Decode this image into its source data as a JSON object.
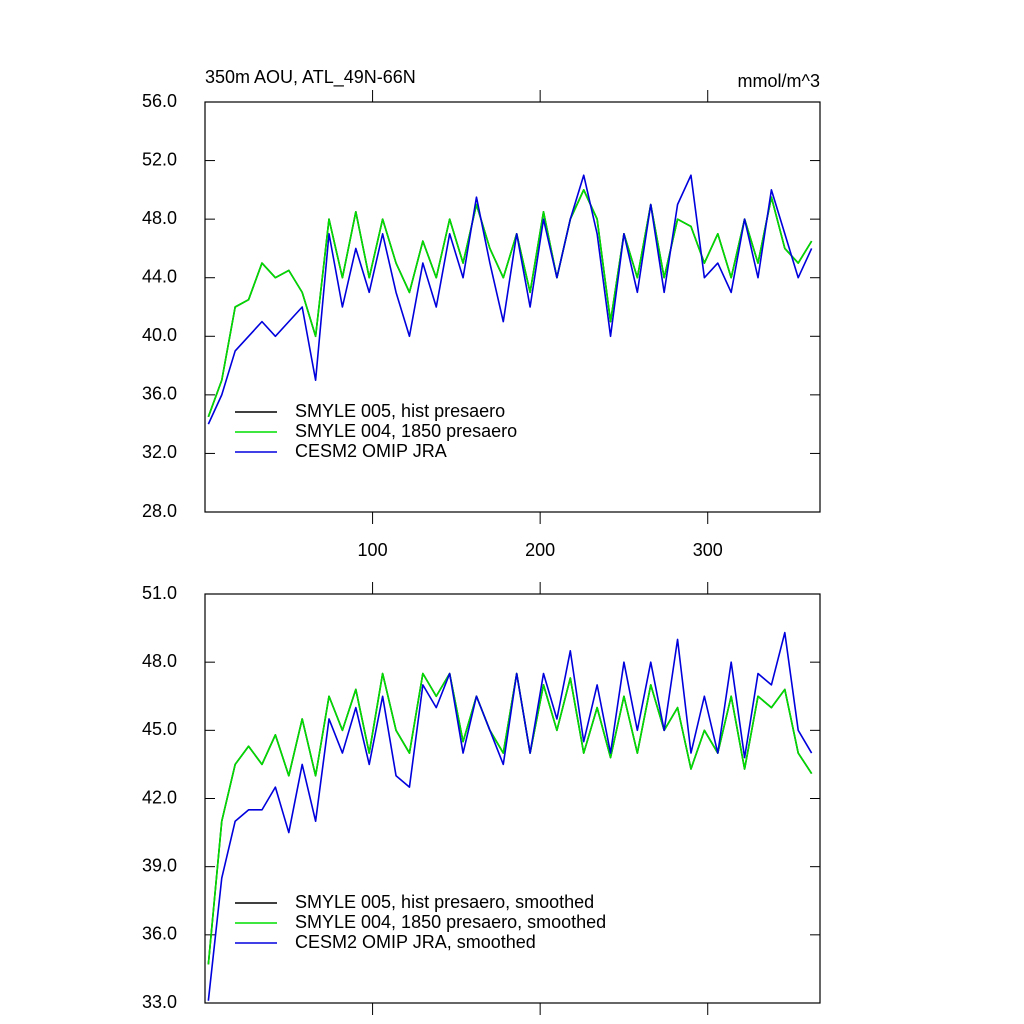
{
  "chart_data": [
    {
      "type": "line",
      "title": "350m AOU, ATL_49N-66N",
      "unit_label": "mmol/m^3",
      "x": [
        2,
        10,
        18,
        26,
        34,
        42,
        50,
        58,
        66,
        74,
        82,
        90,
        98,
        106,
        114,
        122,
        130,
        138,
        146,
        154,
        162,
        170,
        178,
        186,
        194,
        202,
        210,
        218,
        226,
        234,
        242,
        250,
        258,
        266,
        274,
        282,
        290,
        298,
        306,
        314,
        322,
        330,
        338,
        346,
        354,
        362
      ],
      "xlim": [
        0,
        367
      ],
      "xticks": [
        100,
        200,
        300
      ],
      "ylim": [
        28,
        56
      ],
      "yticks": [
        {
          "value": 28,
          "label": "28.0"
        },
        {
          "value": 32,
          "label": "32.0"
        },
        {
          "value": 36,
          "label": "36.0"
        },
        {
          "value": 40,
          "label": "40.0"
        },
        {
          "value": 44,
          "label": "44.0"
        },
        {
          "value": 48,
          "label": "48.0"
        },
        {
          "value": 52,
          "label": "52.0"
        },
        {
          "value": 56,
          "label": "56.0"
        }
      ],
      "legend": "lower-left",
      "series": [
        {
          "name": "SMYLE 005, hist presaero",
          "color": "#000000",
          "values": [
            34.5,
            37,
            42,
            42.5,
            45,
            44,
            44.5,
            43,
            40,
            48,
            44,
            48.5,
            44,
            48,
            45,
            43,
            46.5,
            44,
            48,
            45,
            49,
            46,
            44,
            47,
            43,
            48.5,
            44,
            48,
            50,
            48,
            41,
            47,
            44,
            49,
            44,
            48,
            47.5,
            45,
            47,
            44,
            48,
            45,
            49.5,
            46,
            45,
            46.5
          ]
        },
        {
          "name": "SMYLE 004, 1850 presaero",
          "color": "#00dd00",
          "values": [
            34.5,
            37,
            42,
            42.5,
            45,
            44,
            44.5,
            43,
            40,
            48,
            44,
            48.5,
            44,
            48,
            45,
            43,
            46.5,
            44,
            48,
            45,
            49,
            46,
            44,
            47,
            43,
            48.5,
            44,
            48,
            50,
            48,
            41,
            47,
            44,
            49,
            44,
            48,
            47.5,
            45,
            47,
            44,
            48,
            45,
            49.5,
            46,
            45,
            46.5
          ]
        },
        {
          "name": "CESM2 OMIP JRA",
          "color": "#0000dd",
          "values": [
            34,
            36,
            39,
            40,
            41,
            40,
            41,
            42,
            37,
            47,
            42,
            46,
            43,
            47,
            43,
            40,
            45,
            42,
            47,
            44,
            49.5,
            45,
            41,
            47,
            42,
            48,
            44,
            48,
            51,
            47,
            40,
            47,
            43,
            49,
            43,
            49,
            51,
            44,
            45,
            43,
            48,
            44,
            50,
            47,
            44,
            46
          ]
        }
      ]
    },
    {
      "type": "line",
      "x": [
        2,
        10,
        18,
        26,
        34,
        42,
        50,
        58,
        66,
        74,
        82,
        90,
        98,
        106,
        114,
        122,
        130,
        138,
        146,
        154,
        162,
        170,
        178,
        186,
        194,
        202,
        210,
        218,
        226,
        234,
        242,
        250,
        258,
        266,
        274,
        282,
        290,
        298,
        306,
        314,
        322,
        330,
        338,
        346,
        354,
        362
      ],
      "xlim": [
        0,
        367
      ],
      "xticks": [
        100,
        200,
        300
      ],
      "ylim": [
        33,
        51
      ],
      "yticks": [
        {
          "value": 33,
          "label": "33.0"
        },
        {
          "value": 36,
          "label": "36.0"
        },
        {
          "value": 39,
          "label": "39.0"
        },
        {
          "value": 42,
          "label": "42.0"
        },
        {
          "value": 45,
          "label": "45.0"
        },
        {
          "value": 48,
          "label": "48.0"
        },
        {
          "value": 51,
          "label": "51.0"
        }
      ],
      "legend": "lower-left",
      "series": [
        {
          "name": "SMYLE 005, hist presaero, smoothed",
          "color": "#000000",
          "values": [
            34.7,
            41,
            43.5,
            44.3,
            43.5,
            44.8,
            43,
            45.5,
            43,
            46.5,
            45,
            46.8,
            44,
            47.5,
            45,
            44,
            47.5,
            46.5,
            47.5,
            44.5,
            46.5,
            45,
            44,
            47.5,
            44,
            47,
            45,
            47.3,
            44,
            46,
            43.8,
            46.5,
            44,
            47,
            45,
            46,
            43.3,
            45,
            44,
            46.5,
            43.3,
            46.5,
            46,
            46.8,
            44,
            43.1
          ]
        },
        {
          "name": "SMYLE 004, 1850 presaero, smoothed",
          "color": "#00dd00",
          "values": [
            34.7,
            41,
            43.5,
            44.3,
            43.5,
            44.8,
            43,
            45.5,
            43,
            46.5,
            45,
            46.8,
            44,
            47.5,
            45,
            44,
            47.5,
            46.5,
            47.5,
            44.5,
            46.5,
            45,
            44,
            47.5,
            44,
            47,
            45,
            47.3,
            44,
            46,
            43.8,
            46.5,
            44,
            47,
            45,
            46,
            43.3,
            45,
            44,
            46.5,
            43.3,
            46.5,
            46,
            46.8,
            44,
            43.1
          ]
        },
        {
          "name": "CESM2 OMIP JRA, smoothed",
          "color": "#0000dd",
          "values": [
            33.1,
            38.5,
            41,
            41.5,
            41.5,
            42.5,
            40.5,
            43.5,
            41,
            45.5,
            44,
            46,
            43.5,
            46.5,
            43,
            42.5,
            47,
            46,
            47.5,
            44,
            46.5,
            45,
            43.5,
            47.5,
            44,
            47.5,
            45.5,
            48.5,
            44.5,
            47,
            44,
            48,
            45,
            48,
            45,
            49,
            44,
            46.5,
            44,
            48,
            43.8,
            47.5,
            47,
            49.3,
            45,
            44
          ]
        }
      ]
    }
  ]
}
